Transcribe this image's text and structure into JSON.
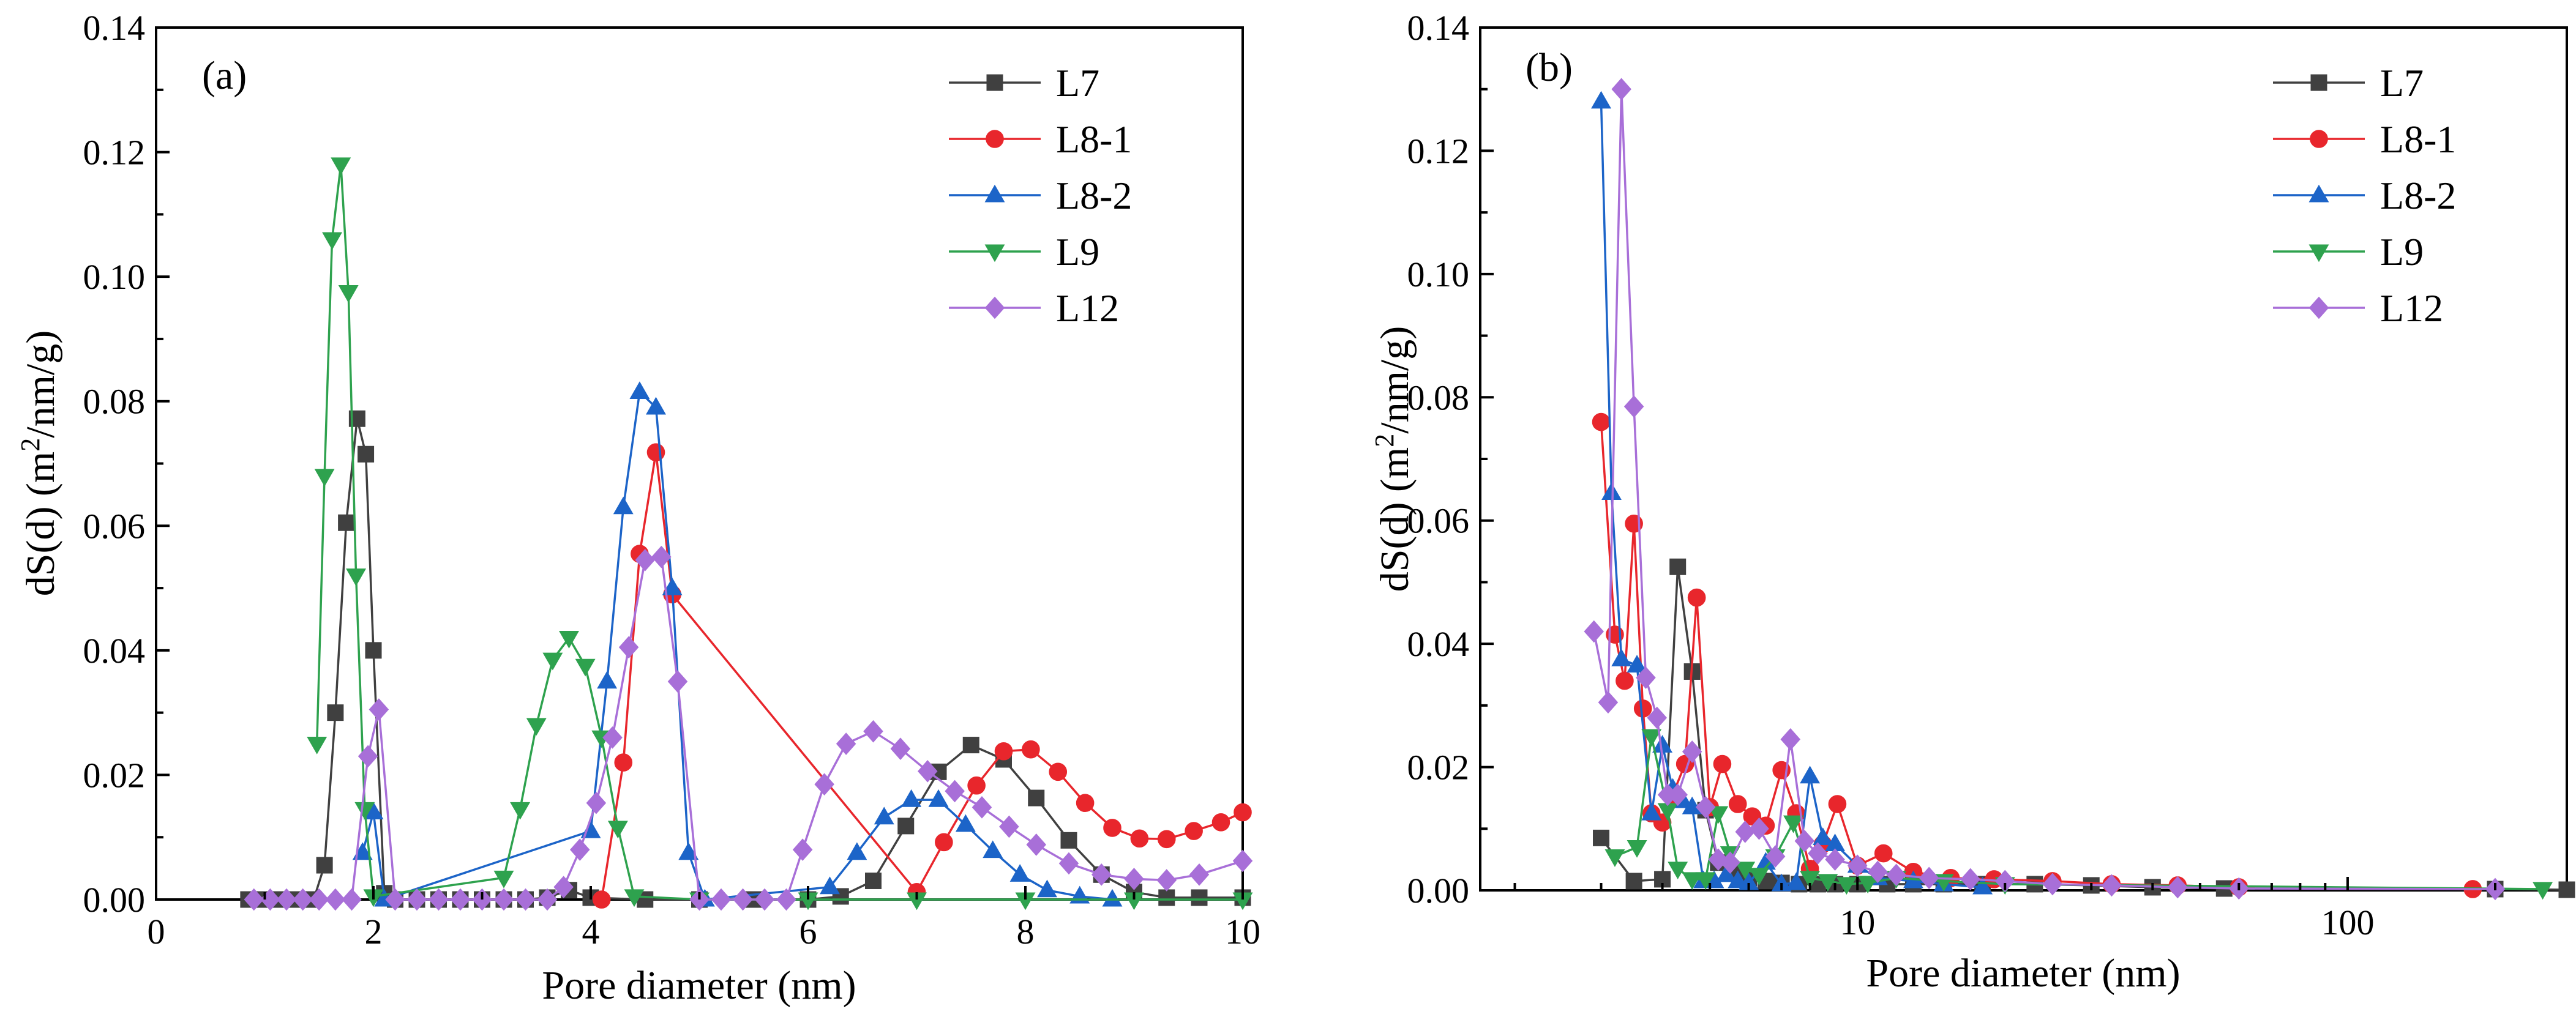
{
  "chart_data": [
    {
      "type": "line",
      "panel_label": "(a)",
      "xlabel": "Pore diameter (nm)",
      "ylabel_main": "dS(d) (m",
      "ylabel_sup": "2",
      "ylabel_tail": "/nm/g)",
      "xscale": "linear",
      "xlim": [
        0,
        10
      ],
      "ylim": [
        0,
        0.14
      ],
      "xticks": [
        0,
        2,
        4,
        6,
        8,
        10
      ],
      "xtick_labels": [
        "0",
        "2",
        "4",
        "6",
        "8",
        "10"
      ],
      "yticks": [
        0,
        0.02,
        0.04,
        0.06,
        0.08,
        0.1,
        0.12,
        0.14
      ],
      "ytick_labels": [
        "0.00",
        "0.02",
        "0.04",
        "0.06",
        "0.08",
        "0.10",
        "0.12",
        "0.14"
      ],
      "legend_position": "top-right",
      "series": [
        {
          "name": "L7",
          "color": "#404040",
          "marker": "square",
          "x": [
            0.85,
            1.0,
            1.15,
            1.3,
            1.45,
            1.55,
            1.65,
            1.75,
            1.85,
            1.93,
            2.0,
            2.1,
            2.2,
            2.4,
            2.6,
            2.8,
            3.0,
            3.2,
            3.4,
            3.6,
            3.8,
            4.0,
            4.5,
            5.0,
            5.5,
            6.0,
            6.3,
            6.6,
            6.9,
            7.2,
            7.5,
            7.8,
            8.1,
            8.4,
            8.7,
            9.0,
            9.3,
            9.6,
            10.0
          ],
          "y": [
            0,
            0,
            0,
            0,
            0,
            0.0055,
            0.03,
            0.0605,
            0.0772,
            0.0715,
            0.04,
            0.001,
            0,
            0,
            0,
            0,
            0,
            0,
            0,
            0.0003,
            0.0015,
            0.0003,
            0,
            0,
            0,
            0,
            0.0005,
            0.003,
            0.0118,
            0.0205,
            0.0248,
            0.0225,
            0.0163,
            0.0095,
            0.004,
            0.0012,
            0.0003,
            0.0003,
            0.0003
          ]
        },
        {
          "name": "L8-1",
          "color": "#e8262c",
          "marker": "circle",
          "x": [
            4.1,
            4.3,
            4.45,
            4.6,
            4.75,
            7.0,
            7.25,
            7.55,
            7.8,
            8.05,
            8.3,
            8.55,
            8.8,
            9.05,
            9.3,
            9.55,
            9.8,
            10.0
          ],
          "y": [
            0,
            0.022,
            0.0555,
            0.0718,
            0.049,
            0.0012,
            0.0092,
            0.0183,
            0.0238,
            0.0241,
            0.0205,
            0.0155,
            0.0115,
            0.0098,
            0.0097,
            0.011,
            0.0124,
            0.014
          ]
        },
        {
          "name": "L8-2",
          "color": "#1c64c8",
          "marker": "triangle-up",
          "x": [
            1.9,
            2.0,
            2.1,
            4.0,
            4.15,
            4.3,
            4.45,
            4.6,
            4.75,
            4.9,
            5.05,
            6.2,
            6.45,
            6.7,
            6.95,
            7.2,
            7.45,
            7.7,
            7.95,
            8.2,
            8.5,
            8.8
          ],
          "y": [
            0.0075,
            0.014,
            0,
            0.011,
            0.035,
            0.063,
            0.0815,
            0.079,
            0.05,
            0.0075,
            0,
            0.002,
            0.0075,
            0.0132,
            0.016,
            0.016,
            0.012,
            0.0078,
            0.004,
            0.0015,
            0.0005,
            0
          ]
        },
        {
          "name": "L9",
          "color": "#2ea24e",
          "marker": "triangle-down",
          "x": [
            1.48,
            1.55,
            1.62,
            1.7,
            1.77,
            1.84,
            1.92,
            2.0,
            3.2,
            3.35,
            3.5,
            3.65,
            3.8,
            3.95,
            4.1,
            4.25,
            4.4,
            5.0,
            6.0,
            7.0,
            8.0,
            9.0,
            10.0
          ],
          "y": [
            0.025,
            0.068,
            0.106,
            0.118,
            0.0975,
            0.052,
            0.0145,
            0.0005,
            0.0035,
            0.0145,
            0.028,
            0.0385,
            0.042,
            0.0375,
            0.026,
            0.0115,
            0.0005,
            0,
            0,
            0,
            0,
            0,
            0
          ]
        },
        {
          "name": "L12",
          "color": "#a86fd8",
          "marker": "diamond",
          "x": [
            0.9,
            1.05,
            1.2,
            1.35,
            1.5,
            1.65,
            1.8,
            1.95,
            2.05,
            2.2,
            2.4,
            2.6,
            2.8,
            3.0,
            3.2,
            3.4,
            3.6,
            3.75,
            3.9,
            4.05,
            4.2,
            4.35,
            4.5,
            4.65,
            4.8,
            5.0,
            5.2,
            5.4,
            5.6,
            5.8,
            5.95,
            6.15,
            6.35,
            6.6,
            6.85,
            7.1,
            7.35,
            7.6,
            7.85,
            8.1,
            8.4,
            8.7,
            9.0,
            9.3,
            9.6,
            10.0
          ],
          "y": [
            0,
            0,
            0,
            0,
            0,
            0,
            0,
            0.023,
            0.0305,
            0,
            0,
            0,
            0,
            0,
            0,
            0,
            0,
            0.002,
            0.008,
            0.0155,
            0.026,
            0.0405,
            0.0545,
            0.055,
            0.035,
            0,
            0,
            0,
            0,
            0,
            0.008,
            0.0185,
            0.025,
            0.027,
            0.0242,
            0.0206,
            0.0174,
            0.0148,
            0.0117,
            0.0088,
            0.0058,
            0.004,
            0.0033,
            0.0031,
            0.004,
            0.0062
          ]
        }
      ]
    },
    {
      "type": "line",
      "panel_label": "(b)",
      "xlabel": "Pore diameter (nm)",
      "ylabel_main": "dS(d) (m",
      "ylabel_sup": "2",
      "ylabel_tail": "/nm/g)",
      "xscale": "log",
      "xlim": [
        1.7,
        280
      ],
      "ylim": [
        0,
        0.14
      ],
      "xtick_major": [
        10,
        100
      ],
      "xtick_labels": [
        "10",
        "100"
      ],
      "yticks": [
        0,
        0.02,
        0.04,
        0.06,
        0.08,
        0.1,
        0.12,
        0.14
      ],
      "ytick_labels": [
        "0.00",
        "0.02",
        "0.04",
        "0.06",
        "0.08",
        "0.10",
        "0.12",
        "0.14"
      ],
      "legend_position": "top-right",
      "series": [
        {
          "name": "L7",
          "color": "#404040",
          "marker": "square",
          "x": [
            3.0,
            3.5,
            4.0,
            4.3,
            4.6,
            4.9,
            5.2,
            5.6,
            6.0,
            6.5,
            7.0,
            7.6,
            8.3,
            9.0,
            10,
            11.5,
            13,
            15,
            18,
            23,
            30,
            40,
            56,
            200,
            280
          ],
          "y": [
            0.0085,
            0.0015,
            0.0018,
            0.0525,
            0.0355,
            0.013,
            0.0045,
            0.003,
            0.002,
            0.0015,
            0.0012,
            0.001,
            0.001,
            0.001,
            0.001,
            0.001,
            0.001,
            0.001,
            0.001,
            0.001,
            0.0008,
            0.0005,
            0.0003,
            0.0002,
            0.0001
          ]
        },
        {
          "name": "L8-1",
          "color": "#e8262c",
          "marker": "circle",
          "x": [
            3.0,
            3.2,
            3.35,
            3.5,
            3.65,
            3.8,
            4.0,
            4.2,
            4.45,
            4.7,
            5.0,
            5.3,
            5.7,
            6.1,
            6.5,
            7.0,
            7.5,
            8.0,
            8.5,
            9.1,
            10,
            11.3,
            13,
            15.5,
            19,
            25,
            33,
            45,
            60,
            180
          ],
          "y": [
            0.076,
            0.0415,
            0.034,
            0.0595,
            0.0295,
            0.0125,
            0.011,
            0.0155,
            0.0205,
            0.0475,
            0.0135,
            0.0205,
            0.014,
            0.012,
            0.0105,
            0.0195,
            0.0125,
            0.0035,
            0.0075,
            0.014,
            0.004,
            0.006,
            0.003,
            0.002,
            0.0018,
            0.0015,
            0.001,
            0.0008,
            0.0005,
            0.0002
          ]
        },
        {
          "name": "L8-2",
          "color": "#1c64c8",
          "marker": "triangle-up",
          "x": [
            3.0,
            3.15,
            3.3,
            3.55,
            3.8,
            4.0,
            4.2,
            4.4,
            4.6,
            4.85,
            5.1,
            5.4,
            5.7,
            6.0,
            6.5,
            7.0,
            7.5,
            8.0,
            8.5,
            9.0,
            10,
            11,
            13,
            15,
            18
          ],
          "y": [
            0.128,
            0.0645,
            0.0375,
            0.0365,
            0.0125,
            0.0235,
            0.0165,
            0.0145,
            0.0135,
            0.0015,
            0.0015,
            0.0025,
            0.0015,
            0.0012,
            0.0045,
            0.001,
            0.0012,
            0.0185,
            0.0085,
            0.0075,
            0.004,
            0.002,
            0.0015,
            0.001,
            0.0005
          ]
        },
        {
          "name": "L9",
          "color": "#2ea24e",
          "marker": "triangle-down",
          "x": [
            3.2,
            3.55,
            3.8,
            4.1,
            4.3,
            4.6,
            4.9,
            5.2,
            5.5,
            5.9,
            6.3,
            6.8,
            7.4,
            8.0,
            8.7,
            9.5,
            10.5,
            12,
            15,
            20,
            250
          ],
          "y": [
            0.0055,
            0.007,
            0.025,
            0.013,
            0.0035,
            0.0018,
            0.0018,
            0.0125,
            0.006,
            0.0035,
            0.0025,
            0.0055,
            0.011,
            0.002,
            0.0015,
            0.001,
            0.0012,
            0.002,
            0.0015,
            0.001,
            0.0002
          ]
        },
        {
          "name": "L12",
          "color": "#a86fd8",
          "marker": "diamond",
          "x": [
            2.9,
            3.1,
            3.3,
            3.5,
            3.7,
            3.9,
            4.1,
            4.3,
            4.6,
            4.9,
            5.2,
            5.5,
            5.9,
            6.3,
            6.8,
            7.3,
            7.8,
            8.3,
            9.0,
            10,
            11,
            12,
            14,
            17,
            20,
            25,
            33,
            45,
            60,
            200
          ],
          "y": [
            0.042,
            0.0305,
            0.13,
            0.0785,
            0.0345,
            0.028,
            0.0155,
            0.0155,
            0.0225,
            0.0135,
            0.005,
            0.0045,
            0.0095,
            0.01,
            0.0055,
            0.0245,
            0.008,
            0.006,
            0.005,
            0.004,
            0.003,
            0.0025,
            0.002,
            0.0018,
            0.0015,
            0.001,
            0.0008,
            0.0005,
            0.0003,
            0.0002
          ]
        }
      ]
    }
  ]
}
